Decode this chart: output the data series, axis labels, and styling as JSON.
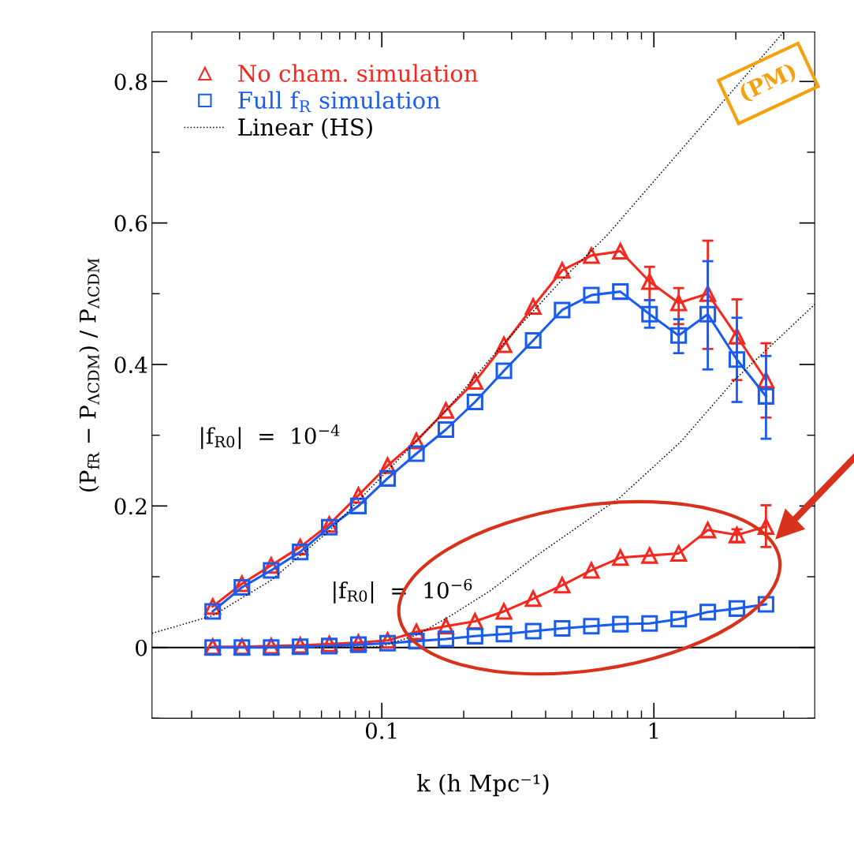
{
  "chart_data": {
    "type": "line",
    "xlabel": "k (h Mpc⁻¹)",
    "ylabel": "(P$_{fR}$ − P$_{ΛCDM}$) / P$_{ΛCDM}$",
    "log": "x",
    "xlim": [
      0.0143,
      3.9
    ],
    "xticks": [
      0.1,
      1
    ],
    "ylim": [
      -0.1,
      0.87
    ],
    "yticks": [
      0,
      0.2,
      0.4,
      0.6,
      0.8
    ],
    "grid": false,
    "legend": "top left",
    "x": [
      0.0239,
      0.0306,
      0.0392,
      0.0501,
      0.0641,
      0.082,
      0.105,
      0.134,
      0.172,
      0.22,
      0.281,
      0.36,
      0.46,
      0.589,
      0.753,
      0.964,
      1.233,
      1.578,
      2.018,
      2.582
    ],
    "series": [
      {
        "name": "No cham. simulation",
        "color": "#f5281e",
        "marker": "triangle",
        "line_style": "solid",
        "values": [
          0.058,
          0.09,
          0.116,
          0.142,
          0.174,
          0.215,
          0.257,
          0.292,
          0.335,
          0.376,
          0.428,
          0.482,
          0.533,
          0.554,
          0.56,
          0.517,
          0.487,
          0.5,
          0.44,
          0.378
        ],
        "errors": [
          null,
          null,
          null,
          null,
          null,
          null,
          null,
          null,
          null,
          null,
          null,
          null,
          null,
          null,
          null,
          [
            0.491,
            0.538
          ],
          [
            0.457,
            0.508
          ],
          [
            0.422,
            0.575
          ],
          [
            0.378,
            0.492
          ],
          [
            0.325,
            0.43
          ]
        ]
      },
      {
        "name": "Full f$_{R}$ simulation",
        "color": "#1a5cf0",
        "marker": "square",
        "line_style": "solid",
        "values": [
          0.051,
          0.085,
          0.109,
          0.135,
          0.17,
          0.2,
          0.239,
          0.274,
          0.308,
          0.347,
          0.391,
          0.434,
          0.477,
          0.498,
          0.503,
          0.471,
          0.441,
          0.471,
          0.407,
          0.355
        ],
        "errors": [
          null,
          null,
          null,
          null,
          null,
          null,
          null,
          null,
          null,
          null,
          null,
          null,
          null,
          null,
          null,
          [
            0.452,
            0.491
          ],
          [
            0.416,
            0.464
          ],
          [
            0.393,
            0.546
          ],
          [
            0.347,
            0.466
          ],
          [
            0.295,
            0.412
          ]
        ]
      },
      {
        "color": "#f5281e",
        "marker": "triangle",
        "line_style": "solid",
        "values": [
          0.001,
          0.001,
          0.002,
          0.003,
          0.005,
          0.007,
          0.01,
          0.022,
          0.03,
          0.037,
          0.051,
          0.069,
          0.088,
          0.109,
          0.127,
          0.13,
          0.133,
          0.166,
          0.159,
          0.171
        ],
        "errors": [
          null,
          null,
          null,
          null,
          null,
          null,
          null,
          null,
          null,
          null,
          null,
          null,
          null,
          null,
          null,
          null,
          null,
          null,
          [
            0.149,
            0.167
          ],
          [
            0.142,
            0.201
          ]
        ]
      },
      {
        "color": "#1a5cf0",
        "marker": "square",
        "line_style": "solid",
        "values": [
          0.0,
          0.0,
          0.0,
          0.001,
          0.002,
          0.004,
          0.006,
          0.009,
          0.012,
          0.016,
          0.019,
          0.023,
          0.027,
          0.03,
          0.033,
          0.034,
          0.04,
          0.05,
          0.055,
          0.061
        ]
      },
      {
        "name": "Linear (HS)",
        "color": "#000000",
        "marker": "none",
        "line_style": "dotted",
        "x": [
          0.0143,
          0.0239,
          0.0392,
          0.0641,
          0.105,
          0.172,
          0.281,
          0.46,
          0.674,
          1.0,
          1.5,
          2.66,
          3.0
        ],
        "values": [
          0.02,
          0.045,
          0.095,
          0.165,
          0.25,
          0.335,
          0.43,
          0.52,
          0.583,
          0.659,
          0.737,
          0.847,
          0.87
        ]
      },
      {
        "color": "#000000",
        "marker": "none",
        "line_style": "dotted",
        "x": [
          0.057,
          0.099,
          0.135,
          0.176,
          0.25,
          0.365,
          0.75,
          1.25,
          1.99,
          3.9
        ],
        "values": [
          0.0,
          0.001,
          0.018,
          0.043,
          0.08,
          0.128,
          0.212,
          0.29,
          0.379,
          0.485
        ]
      }
    ],
    "ref_lines": [
      {
        "axis": "y",
        "value": 0,
        "color": "#000000",
        "line_style": "solid"
      }
    ],
    "annotations": [
      "|f$_{R0}$|  =  10$^{−4}$",
      "|f$_{R0}$|  =  10$^{−6}$",
      "(PM)"
    ]
  }
}
